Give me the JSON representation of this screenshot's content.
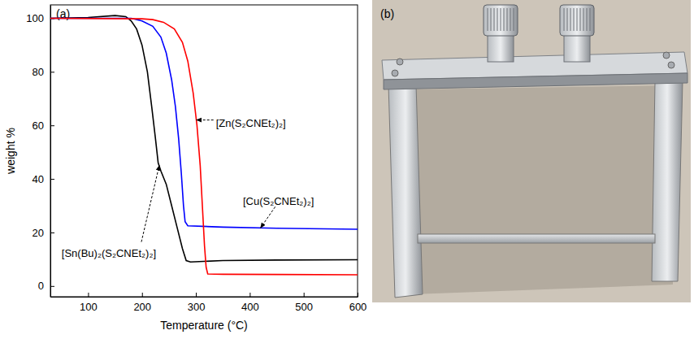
{
  "chart_data": {
    "type": "line",
    "title": "(a)",
    "x_label": "Temperature (°C)",
    "y_label": "weight %",
    "xlim": [
      30,
      600
    ],
    "xticks": [
      100,
      200,
      300,
      400,
      500,
      600
    ],
    "ylim": [
      -4,
      105
    ],
    "yticks": [
      0,
      20,
      40,
      60,
      80,
      100
    ],
    "grid": false,
    "series": [
      {
        "color": "#000000",
        "x": [
          30,
          100,
          150,
          170,
          180,
          190,
          200,
          210,
          218,
          225,
          230,
          235,
          245,
          255,
          265,
          275,
          282,
          290,
          350,
          450,
          600
        ],
        "values": [
          100,
          100.3,
          101,
          100.6,
          99,
          96,
          90,
          80,
          67,
          55,
          46,
          43,
          38,
          30,
          22,
          14,
          9.5,
          9,
          9.5,
          9.7,
          9.8
        ]
      },
      {
        "color": "#0000ff",
        "x": [
          30,
          180,
          200,
          220,
          235,
          245,
          255,
          262,
          268,
          273,
          277,
          280,
          285,
          350,
          450,
          600
        ],
        "values": [
          100,
          100,
          99,
          97,
          93,
          87,
          77,
          67,
          55,
          42,
          30,
          24,
          22.5,
          22,
          21.6,
          21.2
        ]
      },
      {
        "color": "#ff0000",
        "x": [
          30,
          200,
          220,
          240,
          260,
          275,
          285,
          295,
          302,
          308,
          312,
          316,
          319,
          322,
          350,
          450,
          600
        ],
        "values": [
          100,
          99.8,
          99.5,
          98.5,
          96,
          91,
          84,
          72,
          60,
          45,
          30,
          15,
          7,
          4.5,
          4.4,
          4.3,
          4.2
        ]
      }
    ],
    "annotations": [
      {
        "text": "[Sn(Bu)₂(S₂CNEt₂)₂]",
        "x": 232,
        "y": 45
      },
      {
        "text": "[Cu(S₂CNEt₂)₂]",
        "x": 420,
        "y": 21.7
      },
      {
        "text": "[Zn(S₂CNEt₂)₂]",
        "x": 301,
        "y": 62
      }
    ]
  },
  "photo": {
    "label": "(b)"
  }
}
